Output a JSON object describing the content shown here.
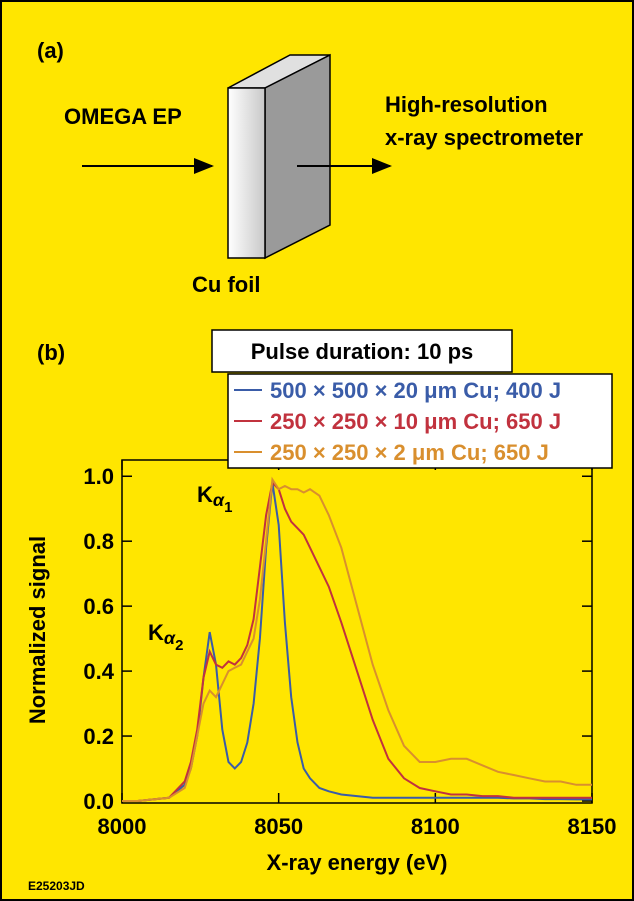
{
  "panel_a": {
    "label": "(a)",
    "source": "OMEGA EP",
    "detector": [
      "High-resolution",
      "x-ray spectrometer"
    ],
    "target": "Cu foil"
  },
  "panel_b": {
    "label": "(b)",
    "pulse": "Pulse duration: 10 ps"
  },
  "figure_id": "E25203JD",
  "chart_data": {
    "type": "line",
    "x_label": "X-ray energy (eV)",
    "y_label": "Normalized signal",
    "peak_labels": [
      [
        "K",
        "α",
        "1"
      ],
      [
        "K",
        "α",
        "2"
      ]
    ],
    "x": [
      8000,
      8005,
      8010,
      8015,
      8020,
      8022,
      8024,
      8026,
      8028,
      8030,
      8032,
      8034,
      8036,
      8038,
      8040,
      8042,
      8044,
      8046,
      8048,
      8050,
      8052,
      8054,
      8056,
      8058,
      8060,
      8063,
      8066,
      8070,
      8075,
      8080,
      8085,
      8090,
      8095,
      8100,
      8105,
      8110,
      8115,
      8120,
      8125,
      8130,
      8135,
      8140,
      8145,
      8150
    ],
    "series": [
      {
        "name": "500 × 500 × 20 μm Cu; 400 J",
        "color": "#3a5ca8",
        "values": [
          0,
          0,
          0.005,
          0.01,
          0.05,
          0.1,
          0.2,
          0.38,
          0.52,
          0.42,
          0.22,
          0.12,
          0.1,
          0.12,
          0.18,
          0.3,
          0.5,
          0.78,
          0.98,
          0.85,
          0.55,
          0.32,
          0.18,
          0.1,
          0.07,
          0.04,
          0.03,
          0.02,
          0.015,
          0.01,
          0.01,
          0.01,
          0.01,
          0.01,
          0.01,
          0.01,
          0.01,
          0.01,
          0.008,
          0.008,
          0.006,
          0.006,
          0.005,
          0.005
        ]
      },
      {
        "name": "250 × 250 × 10 μm Cu; 650 J",
        "color": "#c1323e",
        "values": [
          0,
          0,
          0.005,
          0.01,
          0.06,
          0.12,
          0.22,
          0.38,
          0.46,
          0.42,
          0.41,
          0.43,
          0.42,
          0.44,
          0.48,
          0.56,
          0.72,
          0.88,
          0.98,
          0.96,
          0.9,
          0.86,
          0.84,
          0.82,
          0.78,
          0.72,
          0.66,
          0.55,
          0.4,
          0.25,
          0.13,
          0.07,
          0.04,
          0.03,
          0.02,
          0.02,
          0.015,
          0.015,
          0.01,
          0.01,
          0.01,
          0.01,
          0.01,
          0.01
        ]
      },
      {
        "name": "250 × 250 × 2 μm Cu; 650 J",
        "color": "#d98f2e",
        "values": [
          0,
          0,
          0.005,
          0.01,
          0.04,
          0.1,
          0.2,
          0.3,
          0.34,
          0.32,
          0.36,
          0.4,
          0.41,
          0.42,
          0.46,
          0.5,
          0.62,
          0.8,
          0.99,
          0.96,
          0.97,
          0.96,
          0.96,
          0.95,
          0.96,
          0.94,
          0.88,
          0.78,
          0.6,
          0.42,
          0.28,
          0.17,
          0.12,
          0.12,
          0.13,
          0.13,
          0.11,
          0.09,
          0.08,
          0.07,
          0.06,
          0.06,
          0.05,
          0.05
        ]
      }
    ],
    "xlim": [
      8000,
      8150
    ],
    "xticks": [
      8000,
      8050,
      8100,
      8150
    ],
    "ylim": [
      0,
      1.05
    ],
    "yticks": [
      {
        "value": 0,
        "label": "0.0"
      },
      0.2,
      0.4,
      0.6,
      0.8,
      {
        "value": 1,
        "label": "1.0"
      }
    ]
  }
}
